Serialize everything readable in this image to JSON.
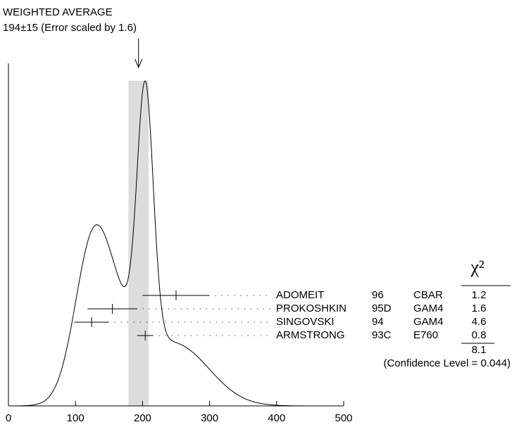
{
  "chart_data": {
    "type": "ideogram",
    "title": "WEIGHTED AVERAGE",
    "subtitle": "194±15 (Error scaled by 1.6)",
    "average": 194,
    "average_error": 15,
    "xlim": [
      0,
      500
    ],
    "xticks": [
      0,
      100,
      200,
      300,
      400,
      500
    ],
    "chi2_header": "χ²",
    "entries": [
      {
        "name": "ADOMEIT",
        "year": "96",
        "technique": "CBAR",
        "value": 250,
        "error": 50,
        "chi2": 1.2
      },
      {
        "name": "PROKOSHKIN",
        "year": "95D",
        "technique": "GAM4",
        "value": 155,
        "error": 37,
        "chi2": 1.6
      },
      {
        "name": "SINGOVSKI",
        "year": "94",
        "technique": "GAM4",
        "value": 124,
        "error": 26,
        "chi2": 4.6
      },
      {
        "name": "ARMSTRONG",
        "year": "93C",
        "technique": "E760",
        "value": 204,
        "error": 12,
        "chi2": 0.8
      }
    ],
    "chi2_total": 8.1,
    "confidence_label": "(Confidence Level = 0.044)"
  }
}
